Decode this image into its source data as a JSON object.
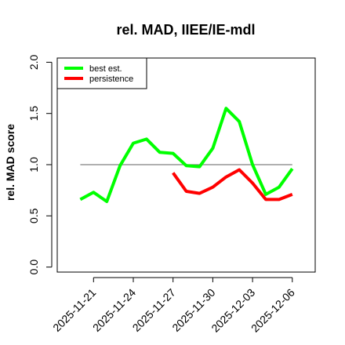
{
  "chart_data": {
    "type": "line",
    "title": "rel. MAD, IIEE/IE-mdl",
    "xlabel": "",
    "ylabel": "rel. MAD score",
    "ylim": [
      0,
      2
    ],
    "yticks": [
      "0.0",
      "0.5",
      "1.0",
      "1.5",
      "2.0"
    ],
    "xticks": [
      "2025-11-21",
      "2025-11-24",
      "2025-11-27",
      "2025-11-30",
      "2025-12-03",
      "2025-12-06"
    ],
    "x": [
      "2025-11-20",
      "2025-11-21",
      "2025-11-22",
      "2025-11-23",
      "2025-11-24",
      "2025-11-25",
      "2025-11-26",
      "2025-11-27",
      "2025-11-28",
      "2025-11-29",
      "2025-11-30",
      "2025-12-01",
      "2025-12-02",
      "2025-12-03",
      "2025-12-04",
      "2025-12-05",
      "2025-12-06"
    ],
    "reference_line": 1.0,
    "legend_position": "top-left",
    "grid": false,
    "series": [
      {
        "name": "best est.",
        "color": "#00ff00",
        "values": [
          0.66,
          0.73,
          0.64,
          0.99,
          1.21,
          1.25,
          1.12,
          1.11,
          0.99,
          0.98,
          1.16,
          1.55,
          1.42,
          1.0,
          0.71,
          0.78,
          0.96
        ]
      },
      {
        "name": "persistence",
        "color": "#ff0000",
        "values": [
          null,
          null,
          null,
          null,
          null,
          null,
          null,
          0.92,
          0.74,
          0.72,
          0.78,
          0.88,
          0.95,
          0.82,
          0.66,
          0.66,
          0.71
        ]
      }
    ]
  }
}
